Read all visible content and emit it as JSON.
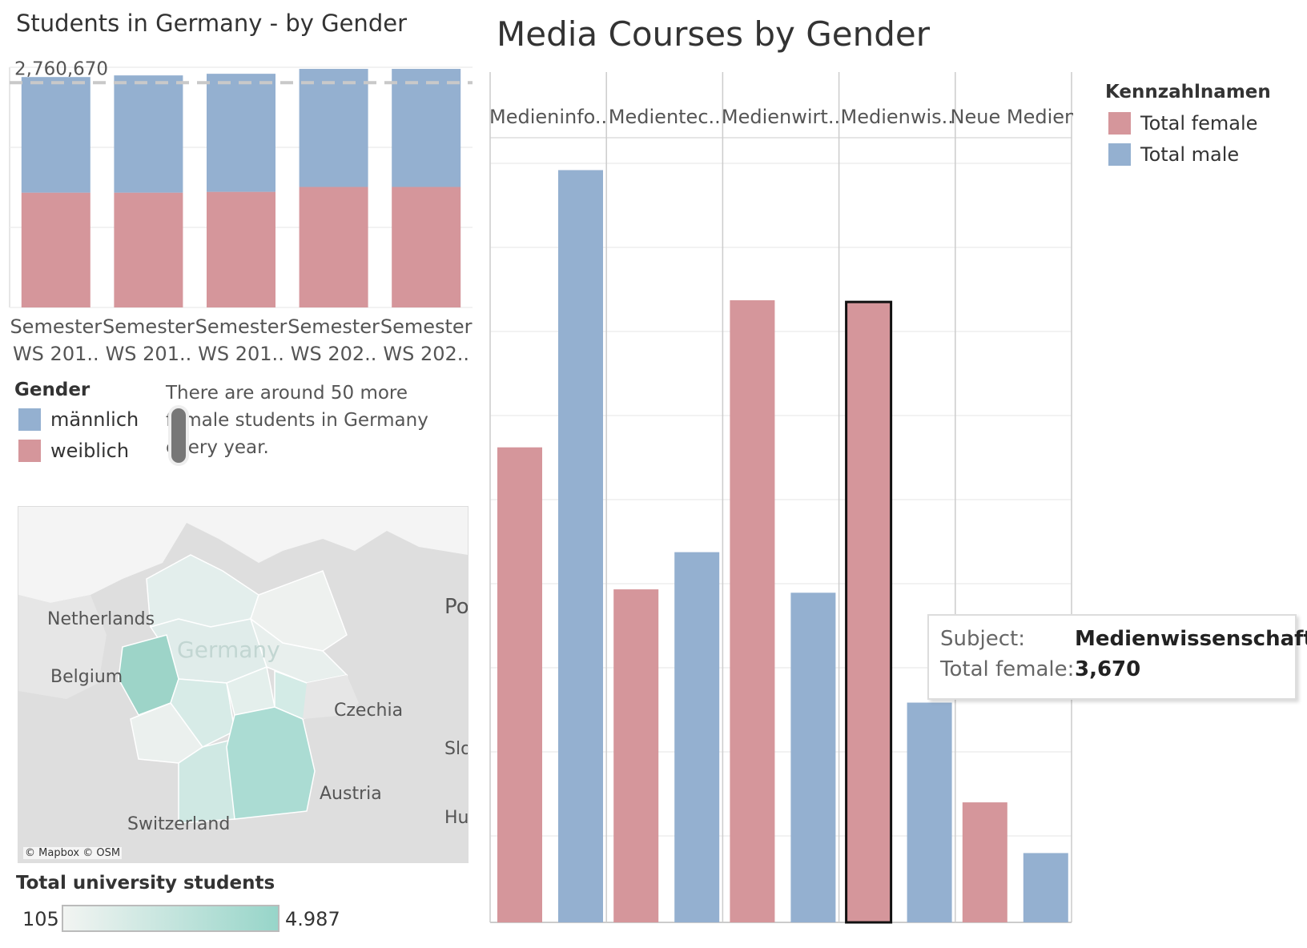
{
  "left_title": "Students in Germany - by Gender",
  "right_title": "Media Courses by Gender",
  "reference_line_label": "2,760,670",
  "gender_legend": {
    "title": "Gender",
    "items": [
      {
        "label": "männlich",
        "color": "#94b0d0"
      },
      {
        "label": "weiblich",
        "color": "#d5969b"
      }
    ]
  },
  "annotation": "There are around 50 more female students in Germany every year.",
  "measure_legend": {
    "title": "Kennzahlnamen",
    "items": [
      {
        "label": "Total female",
        "color": "#d5969b"
      },
      {
        "label": "Total male",
        "color": "#94b0d0"
      }
    ]
  },
  "map": {
    "labels": [
      "Netherlands",
      "Belgium",
      "Germany",
      "Czechia",
      "Austria",
      "Switzerland",
      "Po",
      "Slo",
      "Hu"
    ],
    "attribution": "© Mapbox © OSM"
  },
  "color_scale": {
    "title": "Total university students",
    "min": "105",
    "max": "4.987"
  },
  "tooltip": {
    "subject_key": "Subject:",
    "subject_value": "Medienwissenschaft",
    "female_key": "Total female:",
    "female_value": "3,670"
  },
  "chart_data": [
    {
      "type": "bar",
      "stacked": true,
      "categories": [
        [
          "Semester",
          "WS 201.."
        ],
        [
          "Semester",
          "WS 201.."
        ],
        [
          "Semester",
          "WS 201.."
        ],
        [
          "Semester",
          "WS 202.."
        ],
        [
          "Semester",
          "WS 202.."
        ]
      ],
      "series": [
        {
          "name": "weiblich",
          "values": [
            1410000,
            1410000,
            1420000,
            1480000,
            1480000
          ]
        },
        {
          "name": "männlich",
          "values": [
            1420000,
            1440000,
            1450000,
            1450000,
            1450000
          ]
        }
      ],
      "reference_line": 2760670,
      "ylim": [
        0,
        2950000
      ],
      "grid": true
    },
    {
      "type": "bar",
      "grouped": true,
      "categories": [
        "Medieninfo..",
        "Medientec..",
        "Medienwirt..",
        "Medienwis..",
        "Neue Medien"
      ],
      "series": [
        {
          "name": "Total female",
          "values": [
            2810,
            1970,
            3680,
            3670,
            710
          ]
        },
        {
          "name": "Total male",
          "values": [
            4450,
            2190,
            1950,
            1300,
            410
          ]
        }
      ],
      "highlighted": {
        "category": "Medienwis..",
        "series": "Total female"
      },
      "ylim": [
        0,
        4490
      ],
      "grid": true
    }
  ]
}
